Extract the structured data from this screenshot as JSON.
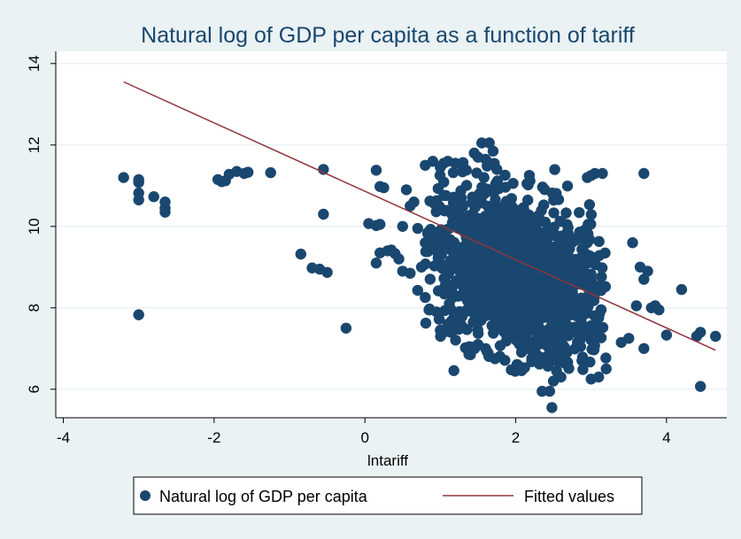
{
  "chart_data": {
    "type": "scatter",
    "title": "Natural log of GDP per capita as a function of tariff",
    "xlabel": "lntariff",
    "ylabel": "",
    "xlim": [
      -4.1,
      4.8
    ],
    "ylim": [
      5.3,
      14.3
    ],
    "xticks": [
      -4,
      -2,
      0,
      2,
      4
    ],
    "xtick_labels": [
      "-4",
      "-2",
      "0",
      "2",
      "4"
    ],
    "yticks": [
      6,
      8,
      10,
      12,
      14
    ],
    "ytick_labels": [
      "6",
      "8",
      "10",
      "12",
      "14"
    ],
    "grid": "horizontal",
    "legend_position": "bottom",
    "colors": {
      "points": "#1a476f",
      "fit": "#90353b",
      "background": "#eaf2f3",
      "plot_bg": "#ffffff"
    },
    "series": [
      {
        "name": "Natural log of GDP per capita",
        "kind": "scatter",
        "points": [
          [
            -3.2,
            11.2
          ],
          [
            -3.0,
            11.15
          ],
          [
            -3.0,
            11.08
          ],
          [
            -3.0,
            10.82
          ],
          [
            -3.0,
            10.65
          ],
          [
            -2.8,
            10.73
          ],
          [
            -2.65,
            10.6
          ],
          [
            -2.65,
            10.45
          ],
          [
            -2.65,
            10.35
          ],
          [
            -3.0,
            7.83
          ],
          [
            -1.95,
            11.15
          ],
          [
            -1.9,
            11.1
          ],
          [
            -1.85,
            11.12
          ],
          [
            -1.8,
            11.28
          ],
          [
            -1.7,
            11.35
          ],
          [
            -1.6,
            11.3
          ],
          [
            -1.55,
            11.33
          ],
          [
            -1.25,
            11.32
          ],
          [
            -0.55,
            11.4
          ],
          [
            -0.55,
            10.3
          ],
          [
            -0.85,
            9.32
          ],
          [
            -0.7,
            8.98
          ],
          [
            -0.6,
            8.95
          ],
          [
            -0.5,
            8.87
          ],
          [
            -0.25,
            7.5
          ],
          [
            0.05,
            10.07
          ],
          [
            0.15,
            10.02
          ],
          [
            0.2,
            10.05
          ],
          [
            0.15,
            11.38
          ],
          [
            0.2,
            10.98
          ],
          [
            0.25,
            10.95
          ],
          [
            0.2,
            9.35
          ],
          [
            0.3,
            9.4
          ],
          [
            0.15,
            9.1
          ],
          [
            0.35,
            9.42
          ],
          [
            0.4,
            9.33
          ],
          [
            0.45,
            9.2
          ],
          [
            0.5,
            8.9
          ],
          [
            0.6,
            8.85
          ],
          [
            0.7,
            8.43
          ],
          [
            0.75,
            9.0
          ],
          [
            0.8,
            9.6
          ],
          [
            0.7,
            9.95
          ],
          [
            0.5,
            10.0
          ],
          [
            0.6,
            10.5
          ],
          [
            0.55,
            10.9
          ],
          [
            0.65,
            10.6
          ],
          [
            3.0,
            11.25
          ],
          [
            3.05,
            11.3
          ],
          [
            2.95,
            11.2
          ],
          [
            3.15,
            11.3
          ],
          [
            3.7,
            11.3
          ],
          [
            4.65,
            7.3
          ],
          [
            4.4,
            7.3
          ],
          [
            4.45,
            7.4
          ],
          [
            4.2,
            8.45
          ],
          [
            3.9,
            7.95
          ],
          [
            4.0,
            7.33
          ],
          [
            4.45,
            6.07
          ],
          [
            3.85,
            8.05
          ],
          [
            3.8,
            8.0
          ],
          [
            3.75,
            8.9
          ],
          [
            3.7,
            8.7
          ],
          [
            3.55,
            9.6
          ],
          [
            3.65,
            9.0
          ],
          [
            3.6,
            8.05
          ],
          [
            3.7,
            7.0
          ],
          [
            3.5,
            7.25
          ],
          [
            3.4,
            7.15
          ],
          [
            3.2,
            6.5
          ],
          [
            3.1,
            6.3
          ],
          [
            3.0,
            6.25
          ],
          [
            2.35,
            5.95
          ],
          [
            2.45,
            5.95
          ],
          [
            2.48,
            5.55
          ],
          [
            2.5,
            6.2
          ],
          [
            2.6,
            6.3
          ],
          [
            1.1,
            7.6
          ],
          [
            1.0,
            7.45
          ],
          [
            0.85,
            7.95
          ],
          [
            0.95,
            7.9
          ],
          [
            1.4,
            6.85
          ],
          [
            1.5,
            7.1
          ],
          [
            1.6,
            7.0
          ],
          [
            1.55,
            12.05
          ],
          [
            1.65,
            12.05
          ],
          [
            1.7,
            11.85
          ],
          [
            1.6,
            11.65
          ],
          [
            1.5,
            11.7
          ],
          [
            1.45,
            11.8
          ],
          [
            1.2,
            11.55
          ],
          [
            1.1,
            11.6
          ],
          [
            1.0,
            11.45
          ],
          [
            0.9,
            11.6
          ],
          [
            0.8,
            11.5
          ],
          [
            1.3,
            11.4
          ],
          [
            1.75,
            11.4
          ],
          [
            1.65,
            11.55
          ],
          [
            2.15,
            11.05
          ]
        ],
        "cluster": {
          "description": "dense cloud of overlapping points",
          "x_center": 2.0,
          "x_spread": 0.6,
          "y_center": 8.8,
          "y_spread": 1.1,
          "x_range": [
            0.8,
            3.2
          ],
          "y_range": [
            6.4,
            11.6
          ],
          "count": 1500
        }
      },
      {
        "name": "Fitted values",
        "kind": "line",
        "x": [
          -3.2,
          4.65
        ],
        "y": [
          13.55,
          6.96
        ]
      }
    ]
  }
}
